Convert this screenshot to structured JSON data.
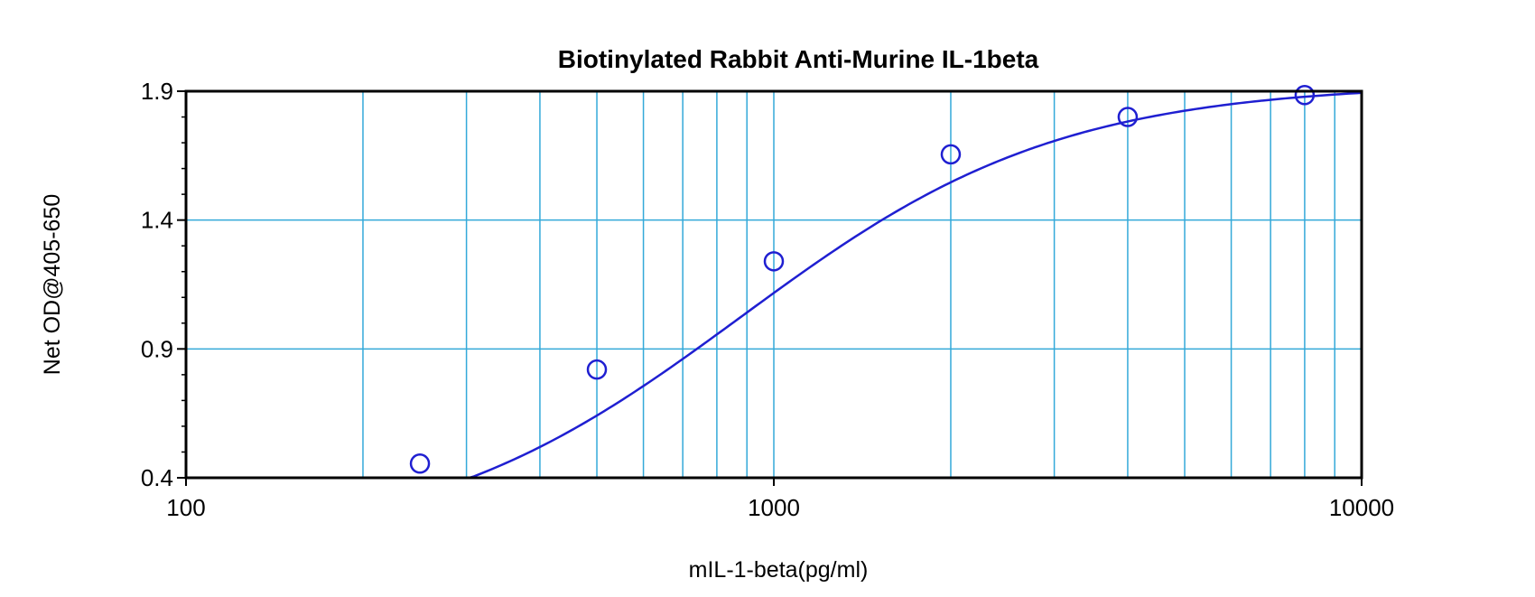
{
  "chart_data": {
    "type": "scatter",
    "title": "Biotinylated Rabbit Anti-Murine IL-1beta",
    "xlabel": "mIL-1-beta(pg/ml)",
    "ylabel": "Net OD@405-650",
    "x_scale": "log",
    "xlim": [
      100,
      10000
    ],
    "ylim": [
      0.4,
      1.9
    ],
    "x_ticks": [
      100,
      1000,
      10000
    ],
    "x_tick_labels": [
      "100",
      "1000",
      "10000"
    ],
    "y_ticks": [
      0.4,
      0.9,
      1.4,
      1.9
    ],
    "y_tick_labels": [
      "0.4",
      "0.9",
      "1.4",
      "1.9"
    ],
    "grid": true,
    "series": [
      {
        "marker": "open-circle",
        "x": [
          250,
          500,
          1000,
          2000,
          4000,
          8000
        ],
        "y": [
          0.455,
          0.82,
          1.24,
          1.655,
          1.8,
          1.885
        ]
      }
    ],
    "fit_curve": {
      "type": "four-parameter-logistic",
      "A": 0.12,
      "D": 1.93,
      "C": 880,
      "B": 1.6,
      "x_range": [
        210,
        10000
      ]
    },
    "colors": {
      "grid": "#33a9d9",
      "data": "#1f1fd1",
      "axis": "#000000"
    }
  }
}
